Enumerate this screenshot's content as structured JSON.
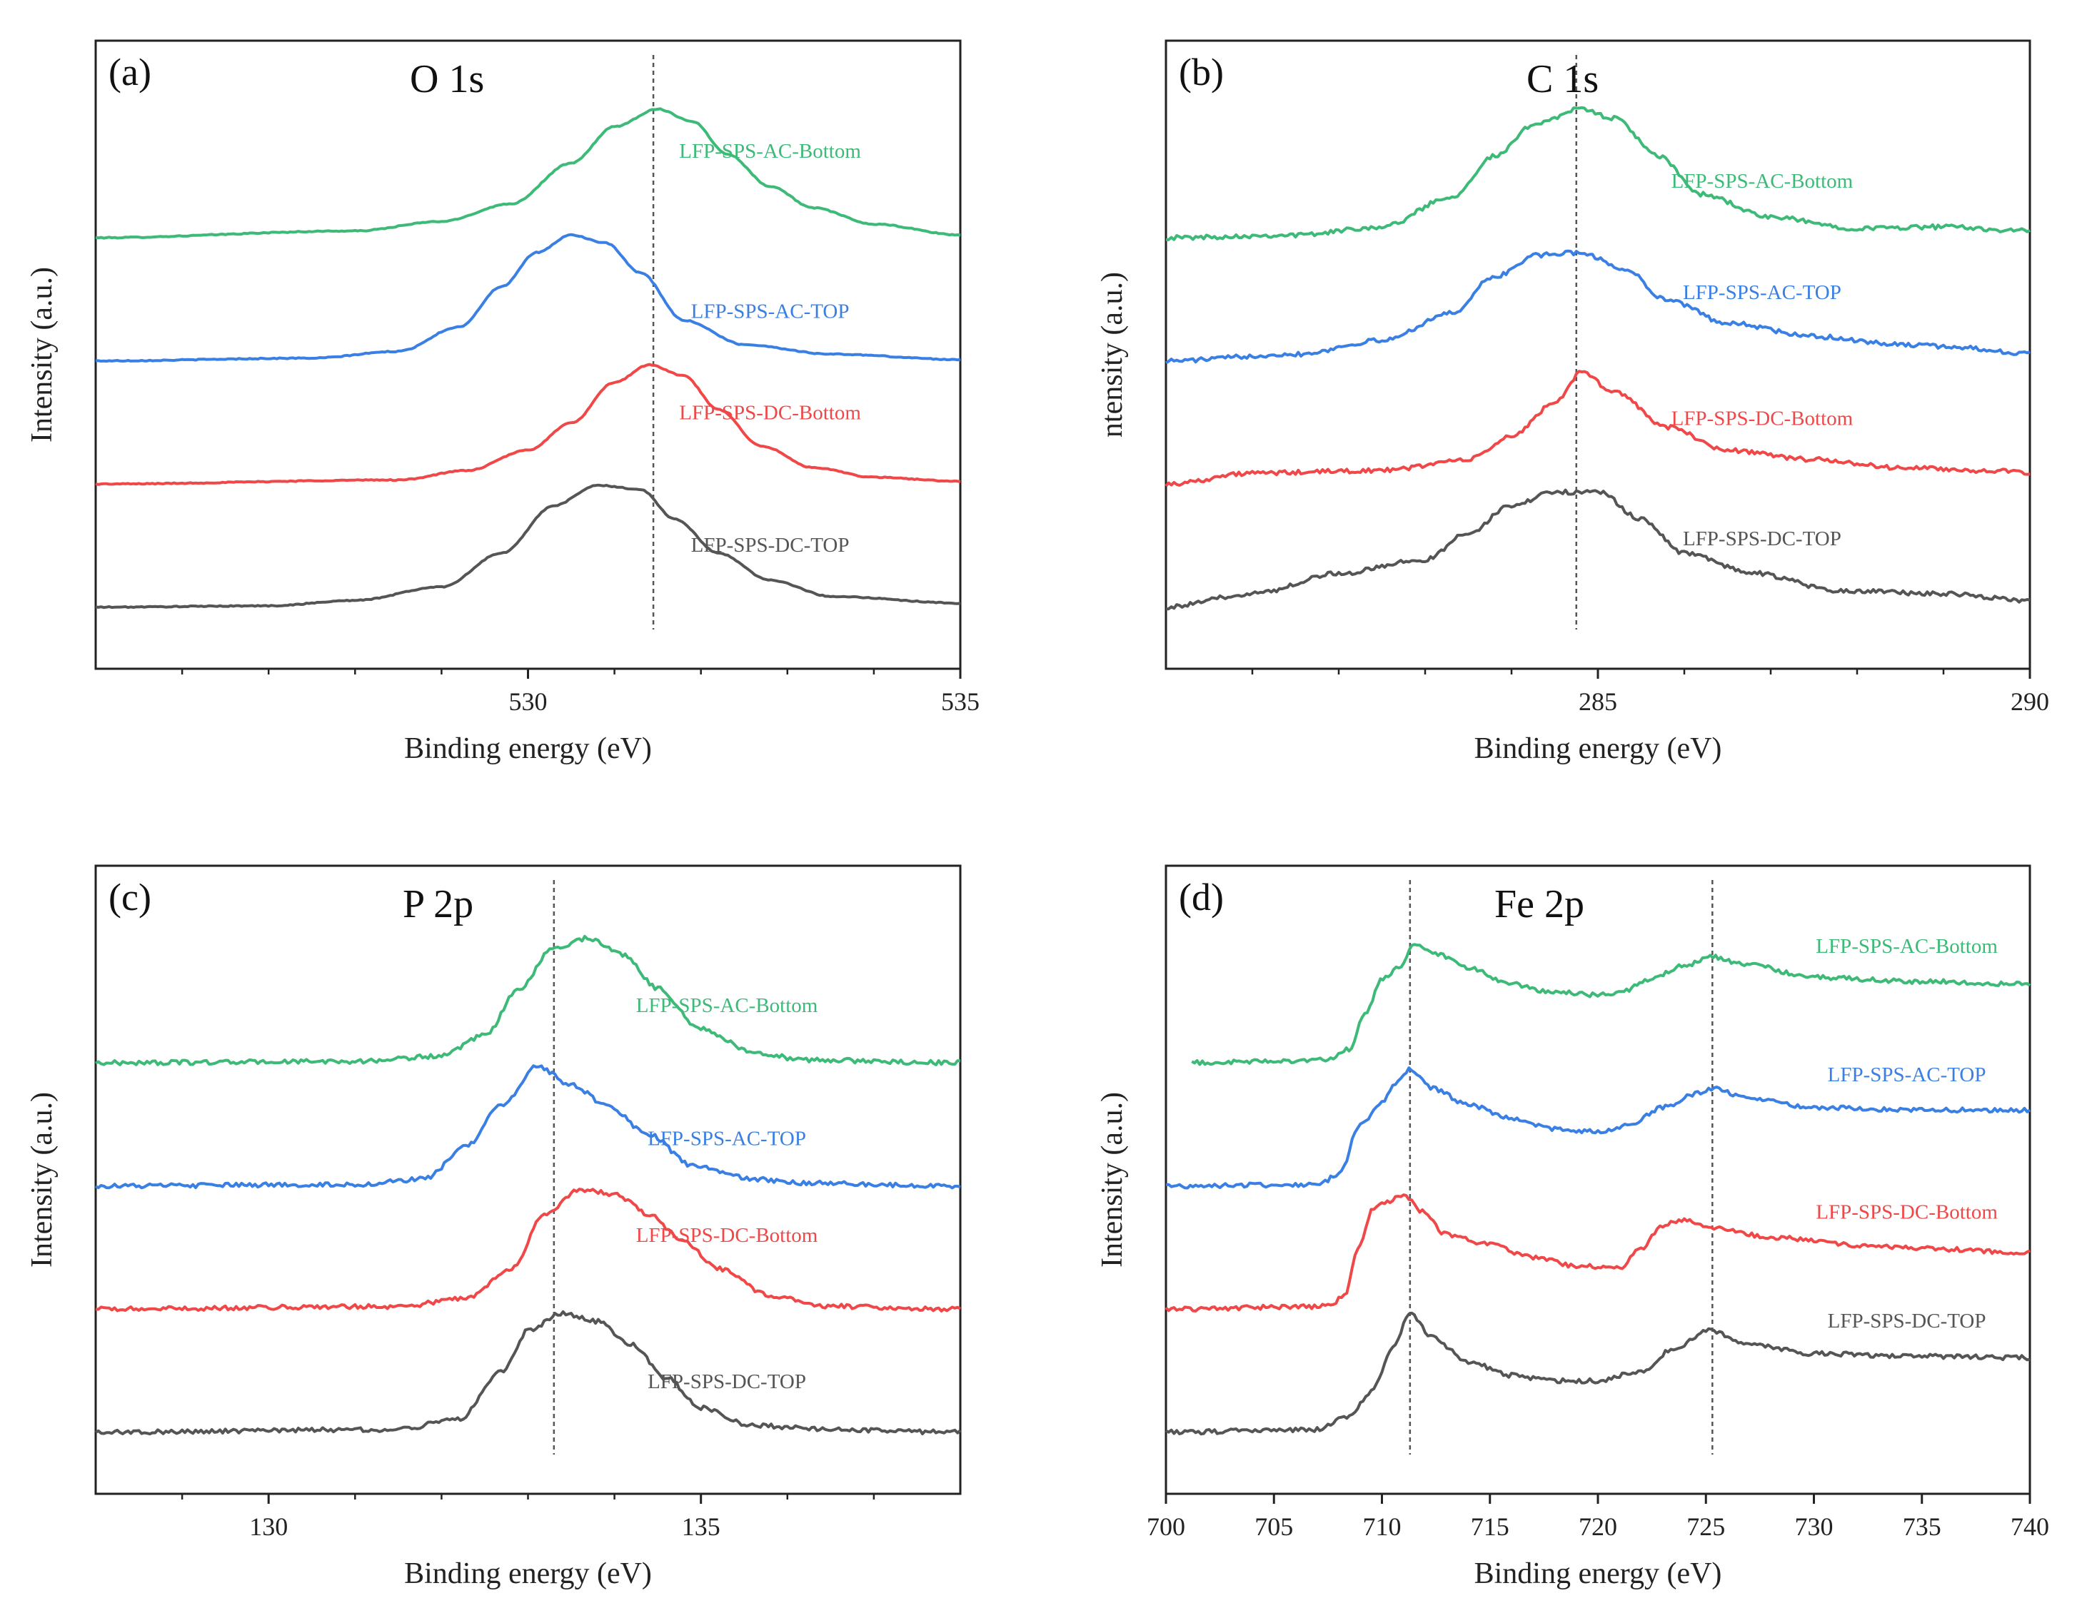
{
  "figure": {
    "series_names": [
      "LFP-SPS-AC-Bottom",
      "LFP-SPS-AC-TOP",
      "LFP-SPS-DC-Bottom",
      "LFP-SPS-DC-TOP"
    ],
    "series_colors": [
      "#3dba78",
      "#3a7fe3",
      "#f04848",
      "#555555"
    ]
  },
  "chart_data": [
    {
      "id": "a",
      "type": "line",
      "panel_label": "(a)",
      "title": "O 1s",
      "xlabel": "Binding energy (eV)",
      "ylabel": "Intensity (a.u.)",
      "xlim": [
        525,
        535
      ],
      "ylim": [
        -0.5,
        4.6
      ],
      "xticks": [
        530,
        535
      ],
      "minor_xticks": [
        526,
        527,
        528,
        529,
        531,
        532,
        533,
        534
      ],
      "reference_lines": [
        531.45
      ],
      "series": [
        {
          "name": "LFP-SPS-AC-Bottom",
          "color": "#3dba78",
          "offset": 3.0,
          "label_x": 532.8,
          "x": [
            525.0,
            528.0,
            529.0,
            529.8,
            530.5,
            531.0,
            531.5,
            531.9,
            532.3,
            532.8,
            533.3,
            534.0,
            535.0
          ],
          "y": [
            0.0,
            0.05,
            0.12,
            0.25,
            0.55,
            0.82,
            0.95,
            0.86,
            0.62,
            0.38,
            0.22,
            0.1,
            0.02
          ]
        },
        {
          "name": "LFP-SPS-AC-TOP",
          "color": "#3a7fe3",
          "offset": 2.0,
          "label_x": 532.8,
          "x": [
            525.0,
            527.5,
            528.5,
            529.2,
            529.7,
            530.1,
            530.5,
            530.9,
            531.3,
            531.8,
            532.5,
            533.5,
            535.0
          ],
          "y": [
            0.0,
            0.02,
            0.07,
            0.25,
            0.55,
            0.8,
            0.93,
            0.87,
            0.65,
            0.3,
            0.12,
            0.05,
            0.01
          ]
        },
        {
          "name": "LFP-SPS-DC-Bottom",
          "color": "#f04848",
          "offset": 1.0,
          "label_x": 532.8,
          "x": [
            525.0,
            528.5,
            529.3,
            530.0,
            530.5,
            531.0,
            531.4,
            531.8,
            532.2,
            532.7,
            533.3,
            534.0,
            535.0
          ],
          "y": [
            0.0,
            0.03,
            0.1,
            0.25,
            0.45,
            0.75,
            0.88,
            0.8,
            0.55,
            0.28,
            0.12,
            0.05,
            0.02
          ]
        },
        {
          "name": "LFP-SPS-DC-TOP",
          "color": "#555555",
          "offset": 0.0,
          "label_x": 532.8,
          "x": [
            525.0,
            527.0,
            528.0,
            529.0,
            529.7,
            530.3,
            530.8,
            531.3,
            531.7,
            532.2,
            532.8,
            533.5,
            535.0
          ],
          "y": [
            0.0,
            0.01,
            0.05,
            0.15,
            0.4,
            0.75,
            0.9,
            0.87,
            0.65,
            0.4,
            0.2,
            0.08,
            0.03
          ]
        }
      ]
    },
    {
      "id": "b",
      "type": "line",
      "panel_label": "(b)",
      "title": "C 1s",
      "xlabel": "Binding energy (eV)",
      "ylabel": "ntensity (a.u.)",
      "xlim": [
        280,
        290
      ],
      "ylim": [
        -0.5,
        4.6
      ],
      "xticks": [
        285,
        290
      ],
      "minor_xticks": [
        281,
        282,
        283,
        284,
        286,
        287,
        288,
        289
      ],
      "reference_lines": [
        284.75
      ],
      "series": [
        {
          "name": "LFP-SPS-AC-Bottom",
          "color": "#3dba78",
          "offset": 3.0,
          "label_x": 286.9,
          "x": [
            280.0,
            281.5,
            282.5,
            283.3,
            283.8,
            284.3,
            284.8,
            285.2,
            285.7,
            286.2,
            287.0,
            288.0,
            289.0,
            290.0
          ],
          "y": [
            0.0,
            0.02,
            0.08,
            0.3,
            0.6,
            0.85,
            0.95,
            0.88,
            0.6,
            0.32,
            0.15,
            0.07,
            0.08,
            0.05
          ]
        },
        {
          "name": "LFP-SPS-AC-TOP",
          "color": "#3a7fe3",
          "offset": 2.0,
          "label_x": 286.9,
          "x": [
            280.0,
            281.5,
            282.5,
            283.3,
            283.8,
            284.3,
            284.8,
            285.3,
            285.8,
            286.5,
            287.5,
            288.5,
            289.2,
            290.0
          ],
          "y": [
            0.0,
            0.05,
            0.15,
            0.35,
            0.62,
            0.78,
            0.8,
            0.68,
            0.45,
            0.28,
            0.18,
            0.12,
            0.1,
            0.05
          ]
        },
        {
          "name": "LFP-SPS-DC-Bottom",
          "color": "#f04848",
          "offset": 1.0,
          "label_x": 286.9,
          "x": [
            280.0,
            281.0,
            282.5,
            283.5,
            284.0,
            284.5,
            284.8,
            285.2,
            285.8,
            286.5,
            287.5,
            288.5,
            289.5,
            290.0
          ],
          "y": [
            0.0,
            0.08,
            0.1,
            0.18,
            0.35,
            0.6,
            0.82,
            0.68,
            0.42,
            0.25,
            0.18,
            0.12,
            0.1,
            0.08
          ]
        },
        {
          "name": "LFP-SPS-DC-TOP",
          "color": "#555555",
          "offset": 0.0,
          "label_x": 286.9,
          "x": [
            280.0,
            281.0,
            282.0,
            283.0,
            283.5,
            284.0,
            284.5,
            285.0,
            285.5,
            286.0,
            286.8,
            287.8,
            289.0,
            290.0
          ],
          "y": [
            0.0,
            0.1,
            0.25,
            0.35,
            0.55,
            0.75,
            0.85,
            0.85,
            0.65,
            0.4,
            0.25,
            0.12,
            0.1,
            0.05
          ]
        }
      ]
    },
    {
      "id": "c",
      "type": "line",
      "panel_label": "(c)",
      "title": "P 2p",
      "xlabel": "Binding energy (eV)",
      "ylabel": "Intensity (a.u.)",
      "xlim": [
        128,
        138
      ],
      "ylim": [
        -0.5,
        4.6
      ],
      "xticks": [
        130,
        135
      ],
      "minor_xticks": [
        129,
        131,
        132,
        133,
        134,
        136,
        137
      ],
      "reference_lines": [
        133.3
      ],
      "series": [
        {
          "name": "LFP-SPS-AC-Bottom",
          "color": "#3dba78",
          "offset": 3.0,
          "label_x": 135.3,
          "x": [
            128.0,
            131.0,
            132.0,
            132.5,
            132.9,
            133.3,
            133.7,
            134.1,
            134.5,
            135.0,
            135.6,
            136.2,
            138.0
          ],
          "y": [
            0.0,
            0.01,
            0.05,
            0.2,
            0.55,
            0.85,
            0.92,
            0.8,
            0.55,
            0.25,
            0.08,
            0.02,
            0.0
          ]
        },
        {
          "name": "LFP-SPS-AC-TOP",
          "color": "#3a7fe3",
          "offset": 2.0,
          "label_x": 135.3,
          "x": [
            128.0,
            131.0,
            131.8,
            132.3,
            132.7,
            133.1,
            133.5,
            133.9,
            134.4,
            134.9,
            135.6,
            136.2,
            138.0
          ],
          "y": [
            0.0,
            0.01,
            0.05,
            0.3,
            0.6,
            0.88,
            0.75,
            0.6,
            0.38,
            0.15,
            0.05,
            0.02,
            0.0
          ]
        },
        {
          "name": "LFP-SPS-DC-Bottom",
          "color": "#f04848",
          "offset": 1.0,
          "label_x": 135.3,
          "x": [
            128.0,
            131.5,
            132.3,
            132.8,
            133.2,
            133.6,
            134.0,
            134.4,
            134.8,
            135.2,
            135.8,
            136.5,
            138.0
          ],
          "y": [
            0.0,
            0.02,
            0.08,
            0.3,
            0.7,
            0.88,
            0.85,
            0.7,
            0.5,
            0.3,
            0.1,
            0.02,
            0.0
          ]
        },
        {
          "name": "LFP-SPS-DC-TOP",
          "color": "#555555",
          "offset": 0.0,
          "label_x": 135.3,
          "x": [
            128.0,
            131.5,
            132.2,
            132.7,
            133.0,
            133.4,
            133.8,
            134.2,
            134.6,
            135.0,
            135.6,
            136.5,
            138.0
          ],
          "y": [
            0.0,
            0.02,
            0.1,
            0.45,
            0.75,
            0.88,
            0.82,
            0.65,
            0.4,
            0.18,
            0.05,
            0.02,
            0.0
          ]
        }
      ]
    },
    {
      "id": "d",
      "type": "line",
      "panel_label": "(d)",
      "title": "Fe 2p",
      "xlabel": "Binding energy (eV)",
      "ylabel": "Intensity (a.u.)",
      "xlim": [
        700,
        740
      ],
      "ylim": [
        -0.5,
        4.6
      ],
      "xticks": [
        700,
        705,
        710,
        715,
        720,
        725,
        730,
        735,
        740
      ],
      "minor_xticks": [],
      "reference_lines": [
        711.3,
        725.3
      ],
      "series": [
        {
          "name": "LFP-SPS-AC-Bottom",
          "color": "#3dba78",
          "offset": 3.0,
          "start_x": 701.2,
          "label_x": 734.3,
          "x": [
            701.2,
            707.5,
            708.5,
            709.2,
            710.0,
            710.8,
            711.5,
            712.5,
            714.0,
            716.0,
            718.0,
            720.0,
            721.0,
            722.5,
            724.0,
            725.3,
            727.0,
            730.0,
            735.0,
            740.0
          ],
          "y": [
            0.0,
            0.02,
            0.1,
            0.35,
            0.62,
            0.7,
            0.88,
            0.8,
            0.7,
            0.58,
            0.52,
            0.5,
            0.52,
            0.62,
            0.72,
            0.78,
            0.72,
            0.63,
            0.6,
            0.58
          ]
        },
        {
          "name": "LFP-SPS-AC-TOP",
          "color": "#3a7fe3",
          "offset": 2.0,
          "label_x": 734.3,
          "x": [
            700.0,
            707.0,
            708.0,
            709.0,
            710.0,
            710.8,
            711.3,
            712.3,
            714.0,
            716.0,
            718.0,
            720.0,
            721.5,
            723.0,
            724.5,
            725.3,
            727.0,
            730.0,
            735.0,
            740.0
          ],
          "y": [
            0.0,
            0.01,
            0.08,
            0.45,
            0.62,
            0.78,
            0.86,
            0.72,
            0.6,
            0.5,
            0.42,
            0.4,
            0.45,
            0.58,
            0.68,
            0.72,
            0.65,
            0.58,
            0.56,
            0.56
          ]
        },
        {
          "name": "LFP-SPS-DC-Bottom",
          "color": "#f04848",
          "offset": 1.0,
          "label_x": 734.3,
          "x": [
            700.0,
            707.5,
            708.3,
            708.9,
            709.6,
            710.4,
            711.0,
            711.8,
            713.0,
            715.0,
            717.0,
            719.0,
            721.0,
            722.0,
            723.0,
            724.0,
            725.5,
            728.0,
            733.0,
            740.0
          ],
          "y": [
            0.0,
            0.02,
            0.1,
            0.45,
            0.75,
            0.8,
            0.85,
            0.72,
            0.55,
            0.48,
            0.38,
            0.32,
            0.3,
            0.45,
            0.62,
            0.66,
            0.6,
            0.53,
            0.46,
            0.42
          ]
        },
        {
          "name": "LFP-SPS-DC-TOP",
          "color": "#555555",
          "offset": 0.0,
          "label_x": 734.3,
          "x": [
            700.0,
            707.0,
            708.5,
            709.5,
            710.5,
            711.3,
            712.3,
            714.0,
            716.0,
            718.0,
            720.0,
            722.0,
            723.5,
            725.2,
            727.0,
            730.0,
            735.0,
            740.0
          ],
          "y": [
            0.0,
            0.02,
            0.12,
            0.3,
            0.62,
            0.88,
            0.7,
            0.52,
            0.42,
            0.38,
            0.38,
            0.45,
            0.62,
            0.75,
            0.65,
            0.58,
            0.56,
            0.55
          ]
        }
      ]
    }
  ]
}
